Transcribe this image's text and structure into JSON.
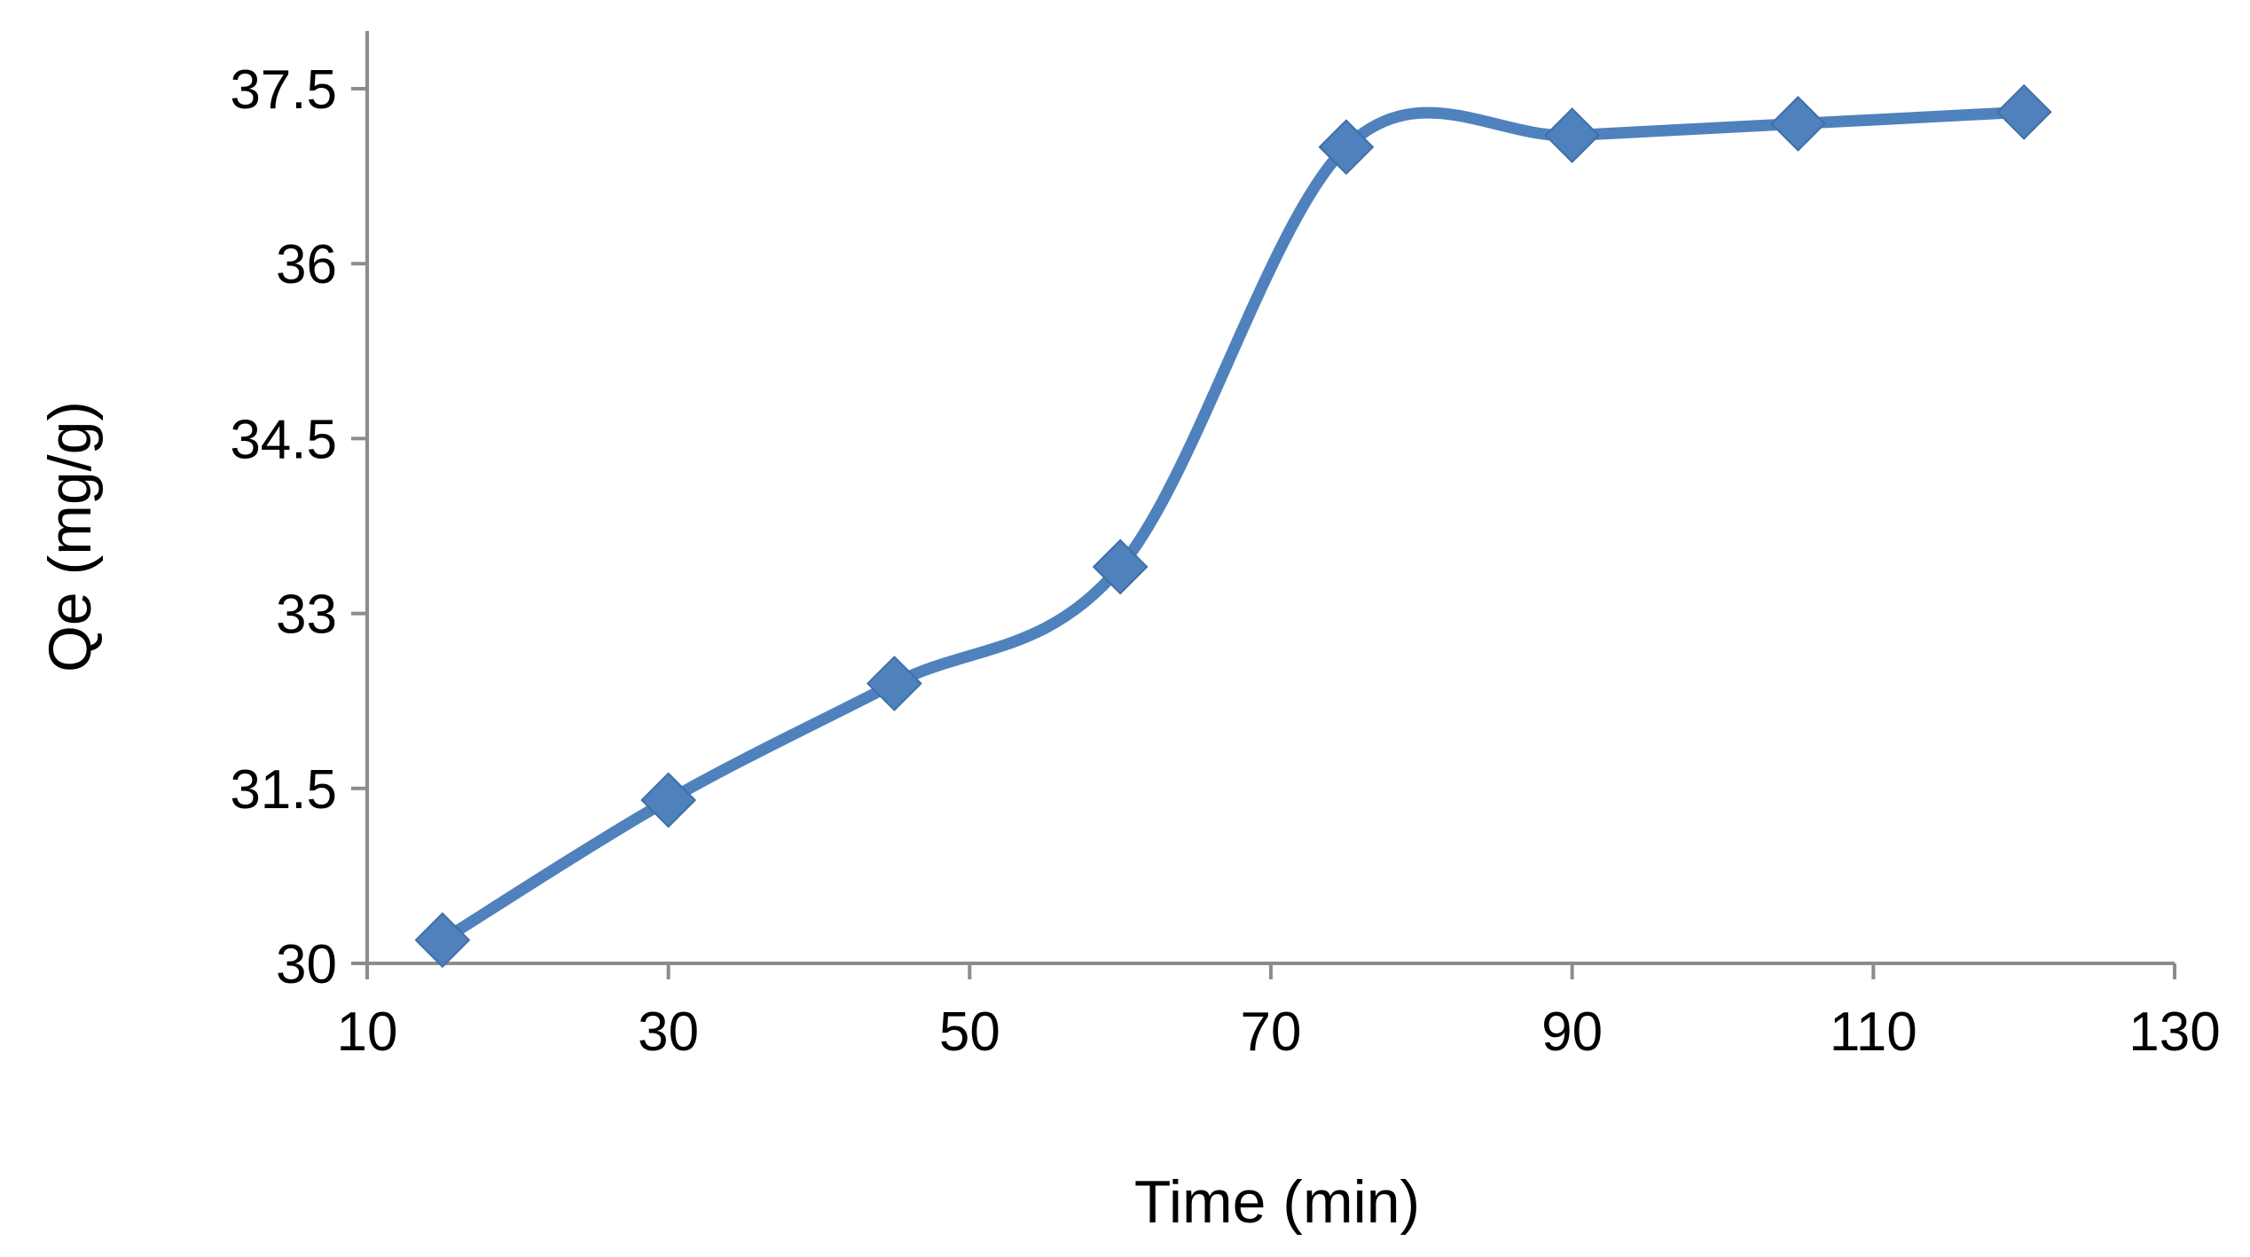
{
  "chart_data": {
    "type": "line",
    "title": "",
    "xlabel": "Time (min)",
    "ylabel": "Qe (mg/g)",
    "xlim": [
      10,
      130
    ],
    "ylim": [
      30,
      37.5
    ],
    "xticks": [
      10,
      30,
      50,
      70,
      90,
      110,
      130
    ],
    "yticks": [
      30,
      31.5,
      33,
      34.5,
      36,
      37.5
    ],
    "xtick_labels": [
      "10",
      "30",
      "50",
      "70",
      "90",
      "110",
      "130"
    ],
    "ytick_labels": [
      "30",
      "31.5",
      "33",
      "34.5",
      "36",
      "37.5"
    ],
    "grid": false,
    "legend": "none",
    "smooth": true,
    "marker": "diamond",
    "series": [
      {
        "color": "#4F81BD",
        "x": [
          15,
          30,
          45,
          60,
          75,
          90,
          105,
          120
        ],
        "y": [
          30.2,
          31.4,
          32.4,
          33.4,
          37.0,
          37.1,
          37.2,
          37.3
        ]
      }
    ]
  }
}
